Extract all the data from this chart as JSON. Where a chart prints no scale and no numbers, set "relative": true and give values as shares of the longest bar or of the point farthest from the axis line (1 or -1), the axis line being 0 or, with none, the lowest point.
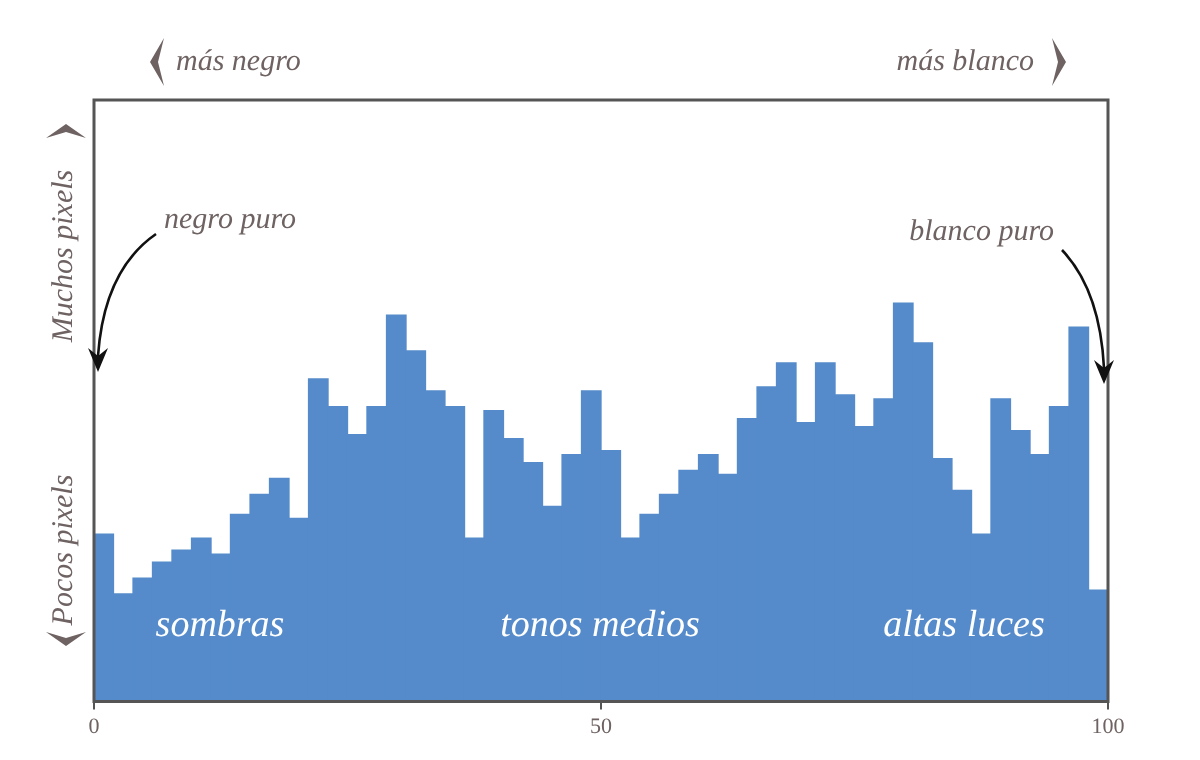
{
  "chart_data": {
    "type": "bar",
    "relative": true,
    "grid": false,
    "legend": false,
    "color": "#558bca",
    "xlim": [
      0,
      100
    ],
    "xticks": [
      0,
      50,
      100
    ],
    "x": [
      0.96,
      2.88,
      4.81,
      6.73,
      8.65,
      10.58,
      12.5,
      14.42,
      16.35,
      18.27,
      20.19,
      22.12,
      24.04,
      25.96,
      27.88,
      29.81,
      31.73,
      33.65,
      35.58,
      37.5,
      39.42,
      41.35,
      43.27,
      45.19,
      47.12,
      49.04,
      50.96,
      52.88,
      54.81,
      56.73,
      58.65,
      60.58,
      62.5,
      64.42,
      66.35,
      68.27,
      70.19,
      72.12,
      74.04,
      75.96,
      77.88,
      79.81,
      81.73,
      83.65,
      85.58,
      87.5,
      89.42,
      91.35,
      93.27,
      95.19,
      97.12,
      99.04
    ],
    "values": [
      0.42,
      0.27,
      0.31,
      0.35,
      0.38,
      0.41,
      0.37,
      0.47,
      0.52,
      0.56,
      0.46,
      0.81,
      0.74,
      0.67,
      0.74,
      0.97,
      0.88,
      0.78,
      0.74,
      0.41,
      0.73,
      0.66,
      0.6,
      0.49,
      0.62,
      0.78,
      0.63,
      0.41,
      0.47,
      0.52,
      0.58,
      0.62,
      0.57,
      0.71,
      0.79,
      0.85,
      0.7,
      0.85,
      0.77,
      0.69,
      0.76,
      1,
      0.9,
      0.61,
      0.53,
      0.42,
      0.76,
      0.68,
      0.62,
      0.74,
      0.94,
      0.28
    ],
    "annotations": [
      "más negro",
      "más blanco",
      "Muchos pixels",
      "Pocos pixels",
      "negro puro",
      "blanco puro",
      "sombras",
      "tonos medios",
      "altas luces"
    ]
  }
}
